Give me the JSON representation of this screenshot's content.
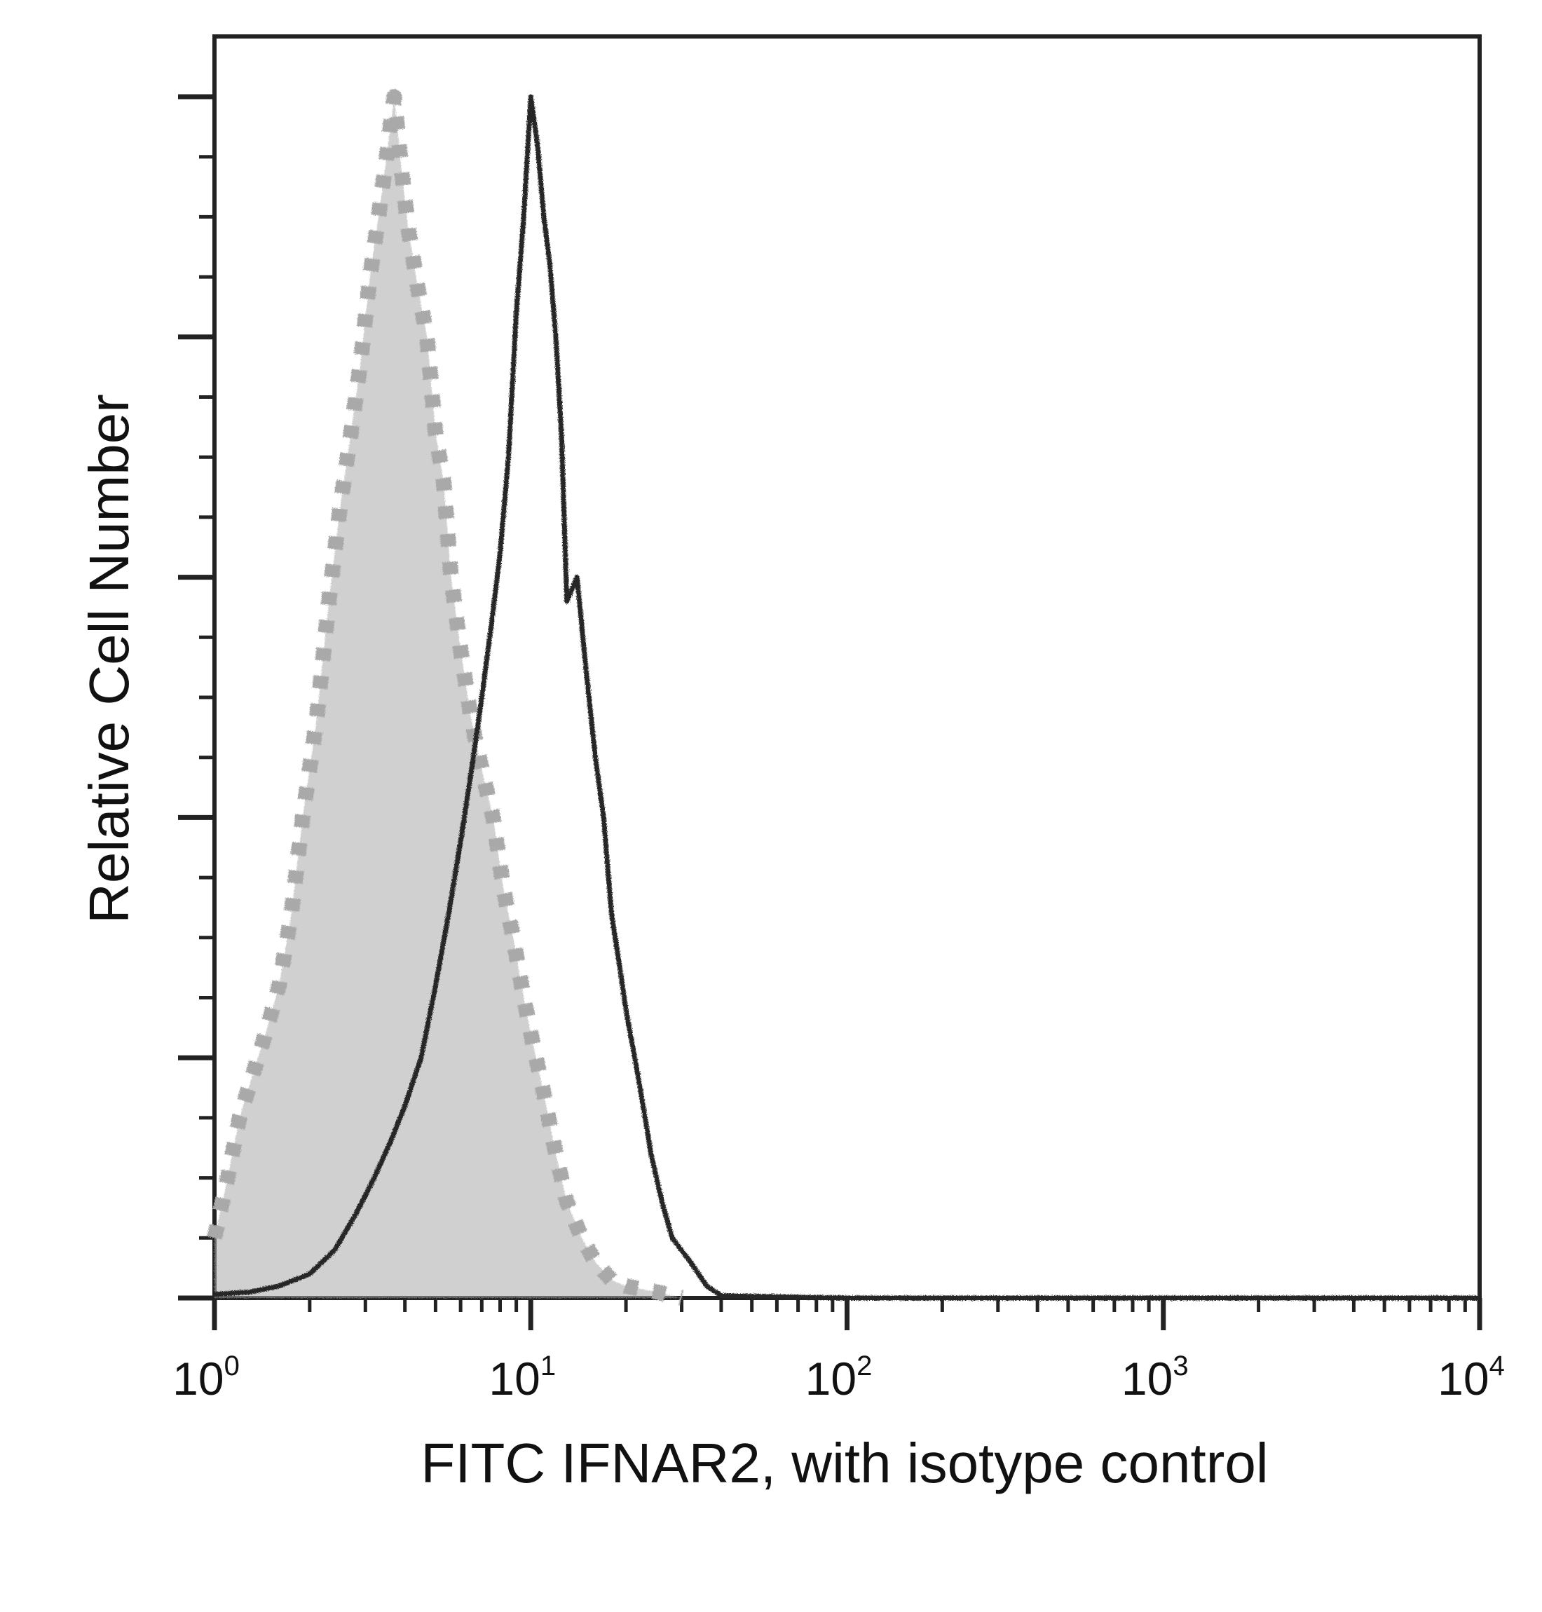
{
  "chart_data": {
    "type": "line",
    "title": "",
    "xlabel": "FITC IFNAR2, with isotype control",
    "ylabel": "Relative Cell Number",
    "xscale": "log",
    "xlim": [
      1,
      10000
    ],
    "ylim": [
      0,
      100
    ],
    "grid": false,
    "legend": "none",
    "x_ticks": [
      {
        "value": 1,
        "base": "10",
        "exp": "0"
      },
      {
        "value": 10,
        "base": "10",
        "exp": "1"
      },
      {
        "value": 100,
        "base": "10",
        "exp": "2"
      },
      {
        "value": 1000,
        "base": "10",
        "exp": "3"
      },
      {
        "value": 10000,
        "base": "10",
        "exp": "4"
      }
    ],
    "series": [
      {
        "color": "#a9a9a9",
        "style": "dotted-fill",
        "x": [
          1.0,
          1.1,
          1.2,
          1.3,
          1.45,
          1.6,
          1.75,
          1.9,
          2.1,
          2.3,
          2.5,
          2.7,
          2.9,
          3.1,
          3.3,
          3.5,
          3.7,
          3.9,
          4.1,
          4.4,
          4.7,
          5.0,
          5.3,
          5.6,
          6.0,
          6.5,
          7.0,
          7.6,
          8.2,
          8.8,
          9.5,
          10.2,
          11.0,
          12.0,
          13.0,
          14.5,
          16.0,
          18.0,
          20.0,
          25.0,
          30.0
        ],
        "y": [
          5,
          10,
          15,
          18,
          22,
          26,
          32,
          40,
          48,
          58,
          66,
          72,
          78,
          85,
          90,
          95,
          100,
          94,
          89,
          84,
          80,
          72,
          68,
          60,
          54,
          48,
          44,
          40,
          34,
          30,
          25,
          21,
          17,
          12,
          8,
          5,
          3,
          1.5,
          1,
          0.5,
          0
        ]
      },
      {
        "color": "#262626",
        "style": "solid",
        "x": [
          1.0,
          1.3,
          1.6,
          2.0,
          2.4,
          2.8,
          3.2,
          3.6,
          4.0,
          4.5,
          5.0,
          5.5,
          6.0,
          6.5,
          7.0,
          7.5,
          8.0,
          8.5,
          9.0,
          9.5,
          10.0,
          10.5,
          11.0,
          11.5,
          12.0,
          12.5,
          13.0,
          14.0,
          15.0,
          16.0,
          17.0,
          18.0,
          19.0,
          20.0,
          22.0,
          24.0,
          26.0,
          28.0,
          32.0,
          36.0,
          40.0,
          100.0,
          1000.0,
          10000.0
        ],
        "y": [
          0.3,
          0.5,
          1,
          2,
          4,
          7,
          10,
          13,
          16,
          20,
          26,
          32,
          38,
          44,
          50,
          56,
          62,
          70,
          82,
          90,
          100,
          96,
          90,
          86,
          80,
          72,
          58,
          60,
          52,
          45,
          40,
          32,
          28,
          24,
          18,
          12,
          8,
          5,
          3,
          1,
          0.2,
          0,
          0,
          0
        ]
      }
    ]
  }
}
